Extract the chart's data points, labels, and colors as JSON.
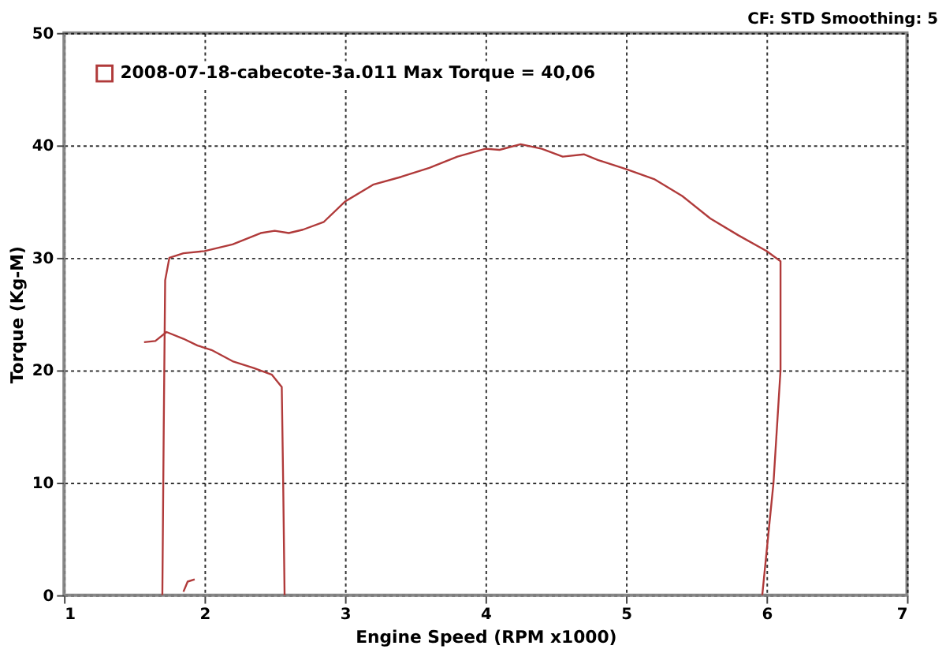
{
  "chart_data": {
    "type": "line",
    "xlabel": "Engine Speed (RPM x1000)",
    "ylabel": "Torque (Kg-M)",
    "annotations": [
      "CF: STD Smoothing: 5"
    ],
    "xlim": [
      1,
      7
    ],
    "xticks": [
      1,
      2,
      3,
      4,
      5,
      6,
      7
    ],
    "ylim": [
      0,
      50
    ],
    "yticks": [
      0,
      10,
      20,
      30,
      40,
      50
    ],
    "grid": true,
    "legend": "top left",
    "marker": "none",
    "line_style": "solid",
    "series": [
      {
        "name": "2008-07-18-cabecote-3a.011 Max Torque = 40,06",
        "color": "#b03a3a",
        "x": [
          1.7,
          1.71,
          1.72,
          1.75,
          1.85,
          2.0,
          2.2,
          2.4,
          2.5,
          2.6,
          2.7,
          2.85,
          3.0,
          3.2,
          3.4,
          3.6,
          3.8,
          4.0,
          4.1,
          4.25,
          4.4,
          4.55,
          4.7,
          4.8,
          5.0,
          5.2,
          5.4,
          5.6,
          5.8,
          6.0,
          6.1,
          6.1,
          6.05,
          5.97
        ],
        "values": [
          0,
          15,
          28,
          30,
          30.4,
          30.6,
          31.2,
          32.2,
          32.4,
          32.2,
          32.5,
          33.2,
          35,
          36.5,
          37.2,
          38.0,
          39.0,
          39.7,
          39.6,
          40.1,
          39.7,
          39.0,
          39.2,
          38.7,
          37.9,
          37.0,
          35.5,
          33.5,
          32.0,
          30.6,
          29.7,
          20,
          10,
          0
        ]
      },
      {
        "color": "#b03a3a",
        "x": [
          1.57,
          1.65,
          1.73,
          1.85,
          1.95,
          2.05,
          2.2,
          2.35,
          2.48,
          2.55,
          2.56,
          2.57
        ],
        "values": [
          22.5,
          22.6,
          23.4,
          22.8,
          22.2,
          21.8,
          20.8,
          20.2,
          19.6,
          18.5,
          10,
          0
        ]
      },
      {
        "color": "#b03a3a",
        "x": [
          1.85,
          1.88,
          1.93
        ],
        "values": [
          0.3,
          1.2,
          1.4
        ]
      }
    ]
  }
}
